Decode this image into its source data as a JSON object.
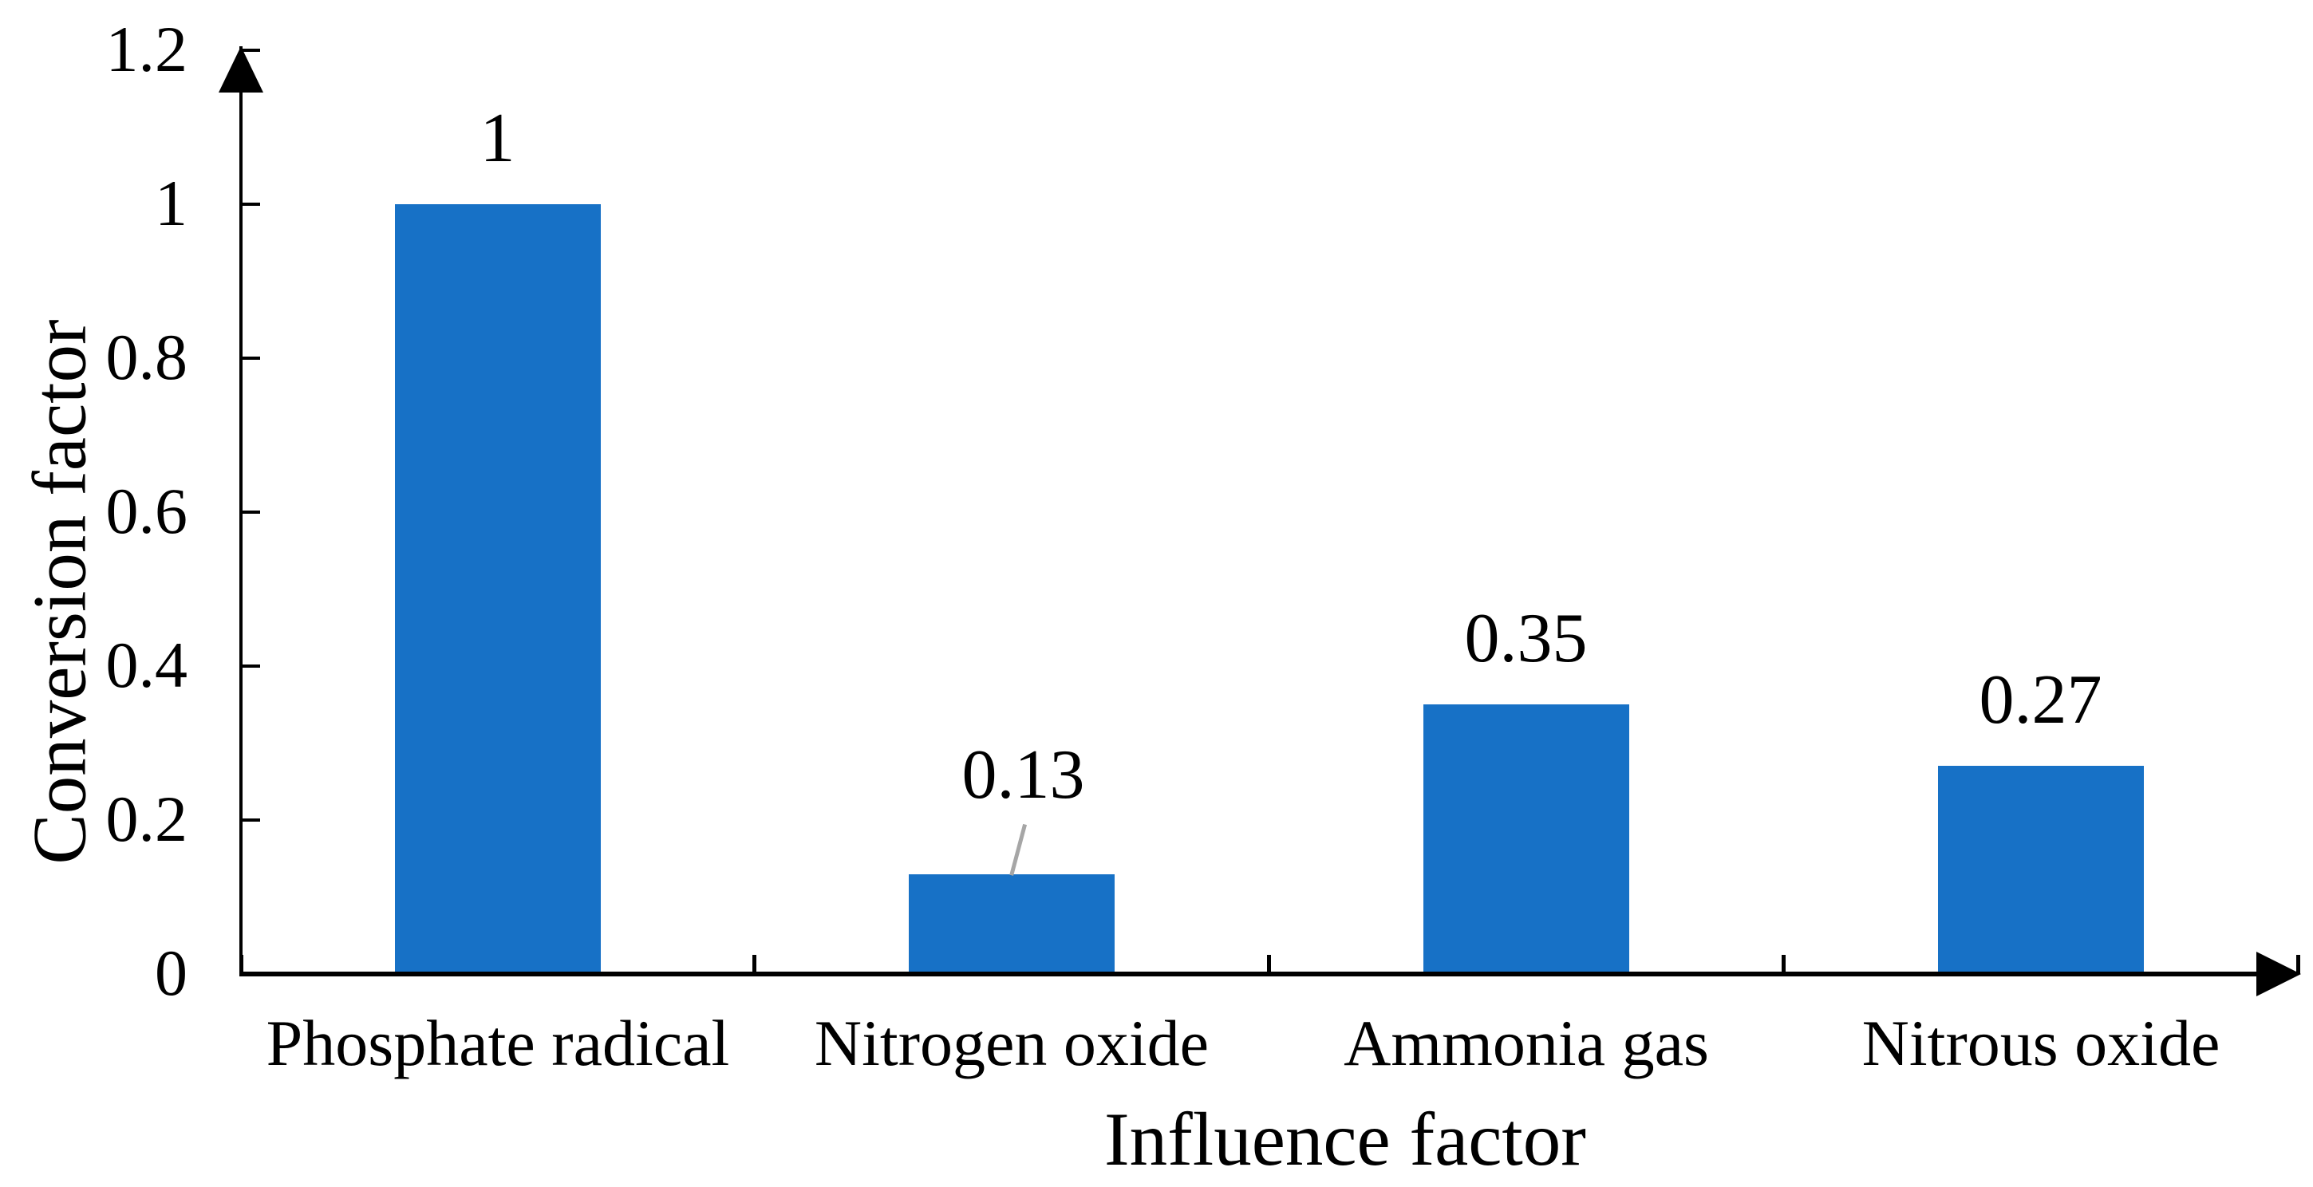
{
  "figure": {
    "background": "#FFFFFF"
  },
  "chart_data": {
    "type": "bar",
    "title": "",
    "categories": [
      "Phosphate radical",
      "Nitrogen oxide",
      "Ammonia gas",
      "Nitrous oxide"
    ],
    "values": [
      1,
      0.13,
      0.35,
      0.27
    ],
    "data_labels": [
      "1",
      "0.13",
      "0.35",
      "0.27"
    ],
    "xlabel": "Influence factor",
    "ylabel": "Conversion factor",
    "ylim": [
      0,
      1.2
    ],
    "ytick_values": [
      0,
      0.2,
      0.4,
      0.6,
      0.8,
      1,
      1.2
    ],
    "ytick_labels": [
      "0",
      "0.2",
      "0.4",
      "0.6",
      "0.8",
      "1",
      "1.2"
    ],
    "grid": false,
    "legend": null,
    "axis_arrows": true,
    "tick_style": "inside",
    "bar_color": "#1771C6",
    "axis_color": "#000000",
    "text_color": "#000000",
    "leader_line": {
      "point_index": 1,
      "color": "#A6A6A6"
    }
  }
}
